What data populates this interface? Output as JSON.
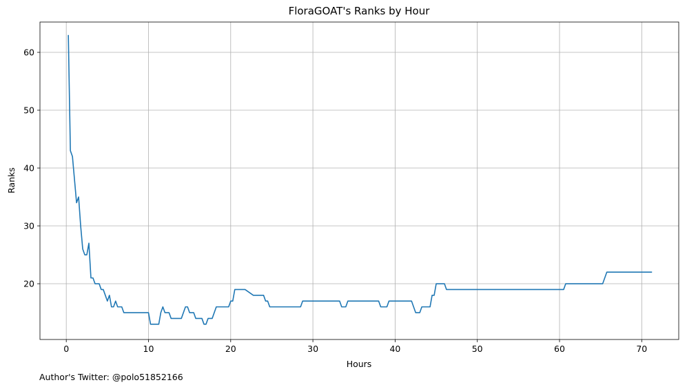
{
  "chart_data": {
    "type": "line",
    "title": "FloraGOAT's Ranks by Hour",
    "xlabel": "Hours",
    "ylabel": "Ranks",
    "annotation": "Author's Twitter: @polo51852166",
    "color": "#1f77b4",
    "grid": true,
    "x": [
      0.25,
      0.5,
      0.75,
      1.0,
      1.25,
      1.5,
      1.75,
      2.0,
      2.25,
      2.5,
      2.75,
      3.0,
      3.25,
      3.5,
      4.0,
      4.25,
      4.5,
      4.75,
      5.0,
      5.25,
      5.5,
      5.75,
      6.0,
      6.25,
      6.75,
      7.0,
      10.0,
      10.25,
      11.25,
      11.5,
      11.75,
      12.0,
      12.5,
      12.75,
      14.0,
      14.5,
      14.75,
      15.0,
      15.5,
      15.75,
      16.5,
      16.75,
      17.0,
      17.25,
      17.75,
      18.25,
      19.75,
      20.0,
      20.25,
      20.5,
      21.75,
      22.75,
      24.0,
      24.25,
      24.5,
      24.75,
      28.5,
      28.75,
      33.25,
      33.5,
      34.0,
      34.25,
      38.0,
      38.25,
      39.0,
      39.25,
      42.0,
      42.5,
      43.0,
      43.25,
      44.25,
      44.5,
      44.75,
      45.0,
      46.0,
      46.25,
      60.5,
      60.75,
      65.25,
      65.75,
      71.25
    ],
    "values": [
      63,
      43,
      42,
      38,
      34,
      35,
      30,
      26,
      25,
      25,
      27,
      21,
      21,
      20,
      20,
      19,
      19,
      18,
      17,
      18,
      16,
      16,
      17,
      16,
      16,
      15,
      15,
      13,
      13,
      15,
      16,
      15,
      15,
      14,
      14,
      16,
      16,
      15,
      15,
      14,
      14,
      13,
      13,
      14,
      14,
      16,
      16,
      17,
      17,
      19,
      19,
      18,
      18,
      17,
      17,
      16,
      16,
      17,
      17,
      16,
      16,
      17,
      17,
      16,
      16,
      17,
      17,
      15,
      15,
      16,
      16,
      18,
      18,
      20,
      20,
      19,
      19,
      20,
      20,
      22,
      22
    ],
    "xlim": [
      -3.2,
      74.5
    ],
    "ylim": [
      10.36,
      65.24
    ],
    "xticks": [
      0,
      10,
      20,
      30,
      40,
      50,
      60,
      70
    ],
    "yticks": [
      20,
      30,
      40,
      50,
      60
    ]
  }
}
